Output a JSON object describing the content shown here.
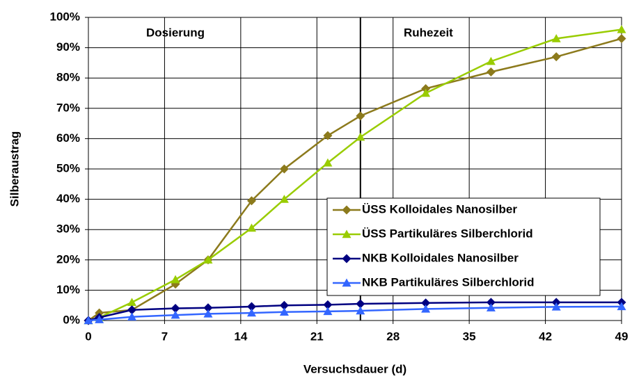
{
  "chart_data": {
    "type": "line",
    "xlabel": "Versuchsdauer (d)",
    "ylabel": "Silberaustrag",
    "annotations": [
      "Dosierung",
      "Ruhezeit"
    ],
    "vline": 25,
    "x": [
      0,
      1,
      4,
      8,
      11,
      15,
      18,
      22,
      25,
      31,
      37,
      43,
      49
    ],
    "series": [
      {
        "name": "ÜSS Kolloidales Nanosilber",
        "color": "#8c7a1c",
        "marker": "diamond",
        "values": [
          0,
          2.5,
          3.5,
          12,
          20,
          39.5,
          50,
          61,
          67.5,
          76.5,
          82,
          87,
          93
        ]
      },
      {
        "name": "ÜSS Partikuläres Silberchlorid",
        "color": "#99cc00",
        "marker": "triangle",
        "values": [
          0,
          1,
          6,
          13.5,
          20,
          30.5,
          40,
          52,
          60.5,
          75,
          85.5,
          93,
          96
        ]
      },
      {
        "name": "NKB Kolloidales Nanosilber",
        "color": "#000080",
        "marker": "diamond",
        "values": [
          0,
          1,
          3.5,
          4,
          4.2,
          4.6,
          5,
          5.2,
          5.5,
          5.8,
          6,
          6,
          6
        ]
      },
      {
        "name": "NKB Partikuläres Silberchlorid",
        "color": "#3366ff",
        "marker": "triangle",
        "values": [
          0,
          0.3,
          1.2,
          1.8,
          2.2,
          2.5,
          2.8,
          3,
          3.2,
          3.8,
          4.2,
          4.5,
          4.6
        ]
      }
    ],
    "xlim": [
      0,
      49
    ],
    "xticks": [
      0,
      7,
      14,
      21,
      28,
      35,
      42,
      49
    ],
    "ylim": [
      0,
      100
    ],
    "yticks": [
      {
        "value": 0,
        "label": "0%"
      },
      {
        "value": 10,
        "label": "10%"
      },
      {
        "value": 20,
        "label": "20%"
      },
      {
        "value": 30,
        "label": "30%"
      },
      {
        "value": 40,
        "label": "40%"
      },
      {
        "value": 50,
        "label": "50%"
      },
      {
        "value": 60,
        "label": "60%"
      },
      {
        "value": 70,
        "label": "70%"
      },
      {
        "value": 80,
        "label": "80%"
      },
      {
        "value": 90,
        "label": "90%"
      },
      {
        "value": 100,
        "label": "100%"
      }
    ],
    "grid": true,
    "legend": "lower right"
  }
}
